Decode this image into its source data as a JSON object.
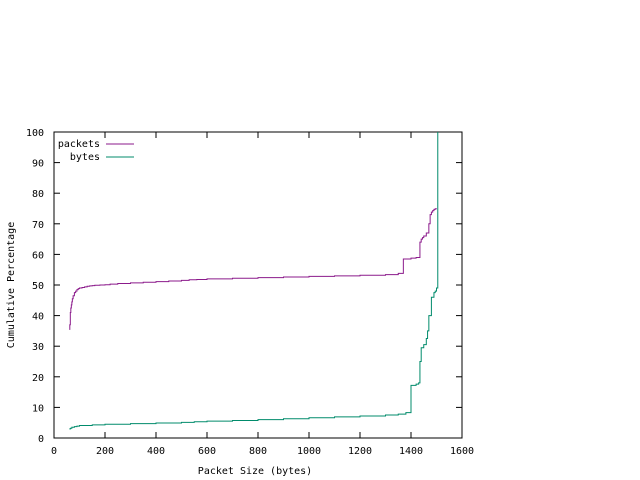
{
  "chart_data": {
    "type": "line",
    "xlabel": "Packet Size (bytes)",
    "ylabel": "Cumulative Percentage",
    "xlim": [
      0,
      1600
    ],
    "ylim": [
      0,
      100
    ],
    "xticks": [
      "0",
      "200",
      "400",
      "600",
      "800",
      "1000",
      "1200",
      "1400",
      "1600"
    ],
    "yticks": [
      "0",
      "10",
      "20",
      "30",
      "40",
      "50",
      "60",
      "70",
      "80",
      "90",
      "100"
    ],
    "grid": false,
    "legend_position": "top-left",
    "series": [
      {
        "name": "packets",
        "color": "#8b1a8b",
        "step": true,
        "x": [
          60,
          62,
          64,
          66,
          68,
          70,
          72,
          75,
          80,
          85,
          90,
          95,
          100,
          110,
          120,
          130,
          140,
          150,
          160,
          180,
          200,
          220,
          250,
          300,
          350,
          400,
          450,
          500,
          530,
          560,
          600,
          700,
          800,
          900,
          1000,
          1100,
          1200,
          1300,
          1350,
          1370,
          1400,
          1420,
          1435,
          1440,
          1445,
          1450,
          1460,
          1470,
          1475,
          1480,
          1485,
          1490,
          1495,
          1500
        ],
        "y": [
          35.5,
          37,
          41,
          42.5,
          43.5,
          44.5,
          45.5,
          46.5,
          47.5,
          48,
          48.5,
          48.8,
          49,
          49.2,
          49.4,
          49.6,
          49.7,
          49.8,
          49.9,
          50,
          50.1,
          50.3,
          50.5,
          50.7,
          50.9,
          51.1,
          51.3,
          51.5,
          51.7,
          51.8,
          52,
          52.2,
          52.4,
          52.6,
          52.8,
          53,
          53.2,
          53.4,
          53.8,
          58.5,
          58.8,
          59,
          64,
          65,
          65.5,
          66,
          67,
          70,
          73,
          73.8,
          74.3,
          74.7,
          74.9,
          75
        ]
      },
      {
        "name": "bytes",
        "color": "#008b6b",
        "step": true,
        "x": [
          60,
          65,
          70,
          80,
          90,
          100,
          150,
          200,
          300,
          400,
          500,
          550,
          600,
          700,
          800,
          900,
          1000,
          1100,
          1200,
          1300,
          1350,
          1380,
          1400,
          1420,
          1430,
          1435,
          1440,
          1450,
          1460,
          1465,
          1470,
          1480,
          1490,
          1495,
          1500,
          1505
        ],
        "y": [
          3,
          3.2,
          3.5,
          3.7,
          3.9,
          4.1,
          4.3,
          4.5,
          4.7,
          4.9,
          5.1,
          5.3,
          5.5,
          5.7,
          6,
          6.3,
          6.6,
          6.9,
          7.2,
          7.5,
          7.8,
          8.3,
          17.2,
          17.6,
          18,
          25,
          29.5,
          30.5,
          32.5,
          35,
          40,
          46,
          47.5,
          48,
          49,
          100
        ]
      }
    ]
  }
}
